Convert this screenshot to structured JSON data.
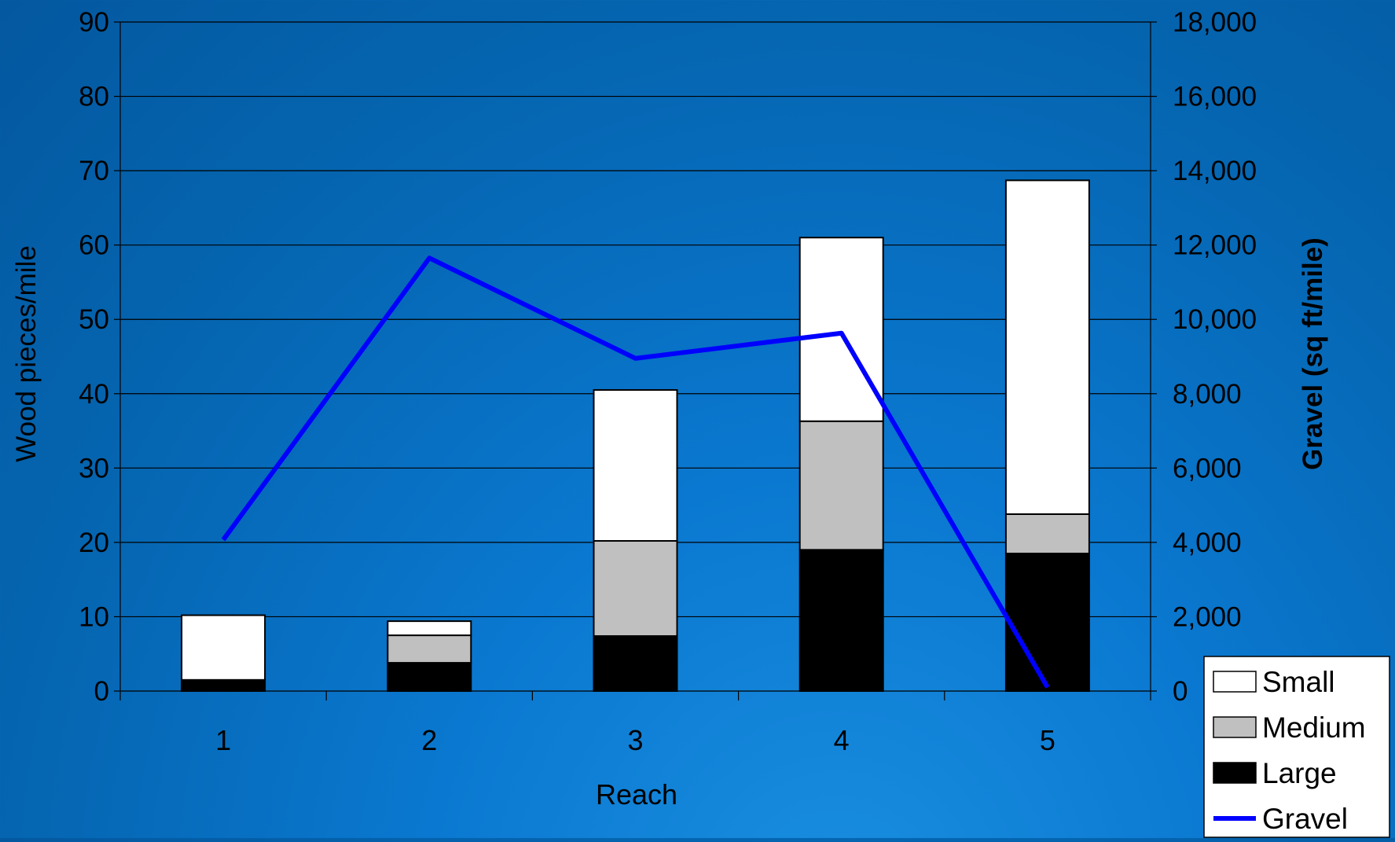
{
  "chart_data": {
    "type": "bar",
    "categories": [
      "1",
      "2",
      "3",
      "4",
      "5"
    ],
    "xlabel": "Reach",
    "ylabel": "Wood pieces/mile",
    "y2label": "Gravel (sq ft/mile)",
    "ylim": [
      0,
      90
    ],
    "y2lim": [
      0,
      18000
    ],
    "yticks": [
      "0",
      "10",
      "20",
      "30",
      "40",
      "50",
      "60",
      "70",
      "80",
      "90"
    ],
    "y2ticks": [
      "0",
      "2,000",
      "4,000",
      "6,000",
      "8,000",
      "10,000",
      "12,000",
      "14,000",
      "16,000",
      "18,000"
    ],
    "grid": true,
    "stacked": true,
    "legend_position": "bottom-right",
    "series": [
      {
        "name": "Large",
        "type": "bar",
        "color": "#000000",
        "values": [
          1.5,
          3.8,
          7.4,
          19.0,
          18.5
        ]
      },
      {
        "name": "Medium",
        "type": "bar",
        "color": "#c0c0c0",
        "values": [
          0,
          3.7,
          12.8,
          17.3,
          5.3
        ]
      },
      {
        "name": "Small",
        "type": "bar",
        "color": "#ffffff",
        "values": [
          8.7,
          1.9,
          20.3,
          24.7,
          44.9
        ]
      },
      {
        "name": "Gravel",
        "type": "line",
        "axis": "right",
        "color": "#0000ff",
        "values": [
          4070,
          11650,
          8950,
          9630,
          100
        ]
      }
    ],
    "legend_order": [
      "Small",
      "Medium",
      "Large",
      "Gravel"
    ]
  }
}
